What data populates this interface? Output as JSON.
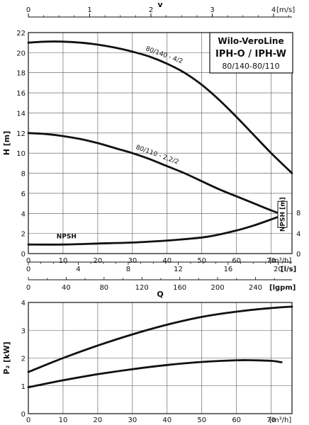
{
  "title_box": {
    "line1": "Wilo-VeroLine",
    "line2": "IPH-O / IPH-W",
    "line3": "80/140-80/110"
  },
  "chart_data": [
    {
      "type": "line",
      "panel": "head",
      "ylabel": "H [m]",
      "ylim": [
        0,
        22
      ],
      "yticks": [
        0,
        2,
        4,
        6,
        8,
        10,
        12,
        14,
        16,
        18,
        20,
        22
      ],
      "xlim": [
        0,
        76
      ],
      "xticks": [
        0,
        10,
        20,
        30,
        40,
        50,
        60,
        70
      ],
      "xunit": "[m³/h]",
      "grid": true,
      "series": [
        {
          "name": "80/140 - 4/2",
          "role": "head",
          "x": [
            0,
            5,
            10,
            15,
            20,
            25,
            30,
            35,
            40,
            45,
            50,
            55,
            60,
            65,
            70,
            76
          ],
          "y": [
            21.0,
            21.1,
            21.1,
            21.0,
            20.8,
            20.5,
            20.1,
            19.6,
            18.9,
            18.0,
            16.8,
            15.3,
            13.6,
            11.8,
            10.0,
            8.0
          ]
        },
        {
          "name": "80/110 - 2,2/2",
          "role": "head",
          "x": [
            0,
            5,
            10,
            15,
            20,
            25,
            30,
            35,
            40,
            45,
            50,
            55,
            60,
            65,
            70,
            74
          ],
          "y": [
            12.0,
            11.9,
            11.7,
            11.4,
            11.0,
            10.5,
            10.0,
            9.4,
            8.7,
            8.0,
            7.2,
            6.4,
            5.7,
            5.0,
            4.3,
            3.8
          ]
        },
        {
          "name": "NPSH",
          "role": "npsh",
          "x": [
            0,
            10,
            20,
            30,
            40,
            50,
            55,
            60,
            65,
            70,
            74
          ],
          "y": [
            0.9,
            0.9,
            1.0,
            1.1,
            1.3,
            1.6,
            1.9,
            2.3,
            2.8,
            3.4,
            3.9
          ]
        }
      ],
      "right_axis": {
        "label": "NPSH [m]",
        "ticks": [
          0,
          4,
          8
        ]
      },
      "top_axis": {
        "label": "v",
        "unit": "[m/s]",
        "ticks": [
          0,
          1,
          2,
          3,
          4
        ]
      },
      "secondary_x_axes": [
        {
          "unit": "[l/s]",
          "ticks": [
            0,
            4,
            8,
            12,
            16,
            20
          ]
        },
        {
          "unit": "[lgpm]",
          "ticks": [
            0,
            40,
            80,
            120,
            160,
            200,
            240
          ]
        }
      ]
    },
    {
      "type": "line",
      "panel": "power",
      "xlabel": "Q",
      "ylabel": "P₂ [kW]",
      "ylim": [
        0,
        4
      ],
      "yticks": [
        0,
        1,
        2,
        3,
        4
      ],
      "xlim": [
        0,
        76
      ],
      "xticks": [
        0,
        10,
        20,
        30,
        40,
        50,
        60,
        70
      ],
      "xunit": "[m³/h]",
      "grid": true,
      "series": [
        {
          "name": "80/140 - 4/2",
          "x": [
            0,
            10,
            20,
            30,
            40,
            50,
            60,
            70,
            76
          ],
          "y": [
            1.5,
            2.0,
            2.45,
            2.85,
            3.2,
            3.48,
            3.67,
            3.8,
            3.85
          ]
        },
        {
          "name": "80/110 - 2,2/2",
          "x": [
            0,
            10,
            20,
            30,
            40,
            50,
            60,
            65,
            70,
            73
          ],
          "y": [
            0.95,
            1.2,
            1.42,
            1.6,
            1.75,
            1.86,
            1.92,
            1.92,
            1.9,
            1.85
          ]
        }
      ]
    }
  ]
}
